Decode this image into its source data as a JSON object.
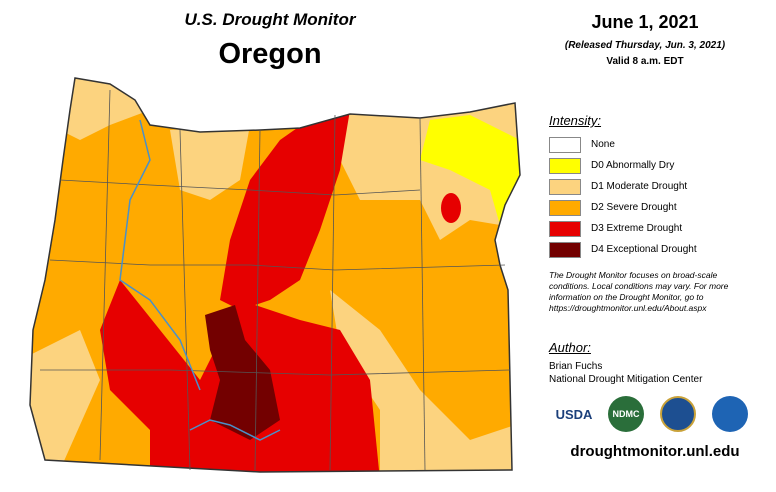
{
  "header": {
    "program": "U.S. Drought Monitor",
    "title": "Oregon"
  },
  "date": {
    "date": "June 1, 2021",
    "released": "(Released Thursday, Jun. 3, 2021)",
    "valid": "Valid 8 a.m. EDT"
  },
  "legend": {
    "title": "Intensity:",
    "items": [
      {
        "label": "None",
        "color": "#ffffff"
      },
      {
        "label": "D0 Abnormally Dry",
        "color": "#ffff00"
      },
      {
        "label": "D1 Moderate Drought",
        "color": "#fcd37f"
      },
      {
        "label": "D2 Severe Drought",
        "color": "#ffaa00"
      },
      {
        "label": "D3 Extreme Drought",
        "color": "#e60000"
      },
      {
        "label": "D4 Exceptional Drought",
        "color": "#730000"
      }
    ]
  },
  "note": "The Drought Monitor focuses on broad-scale conditions. Local conditions may vary. For more information on the Drought Monitor, go to https://droughtmonitor.unl.edu/About.aspx",
  "author": {
    "title": "Author:",
    "name": "Brian Fuchs",
    "org": "National Drought Mitigation Center"
  },
  "logos": [
    "USDA",
    "NDMC"
  ],
  "url": "droughtmonitor.unl.edu"
}
